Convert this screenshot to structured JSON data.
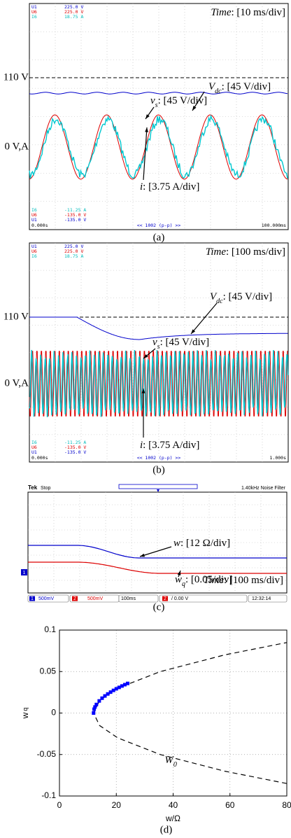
{
  "panels": [
    {
      "caption": "(a)",
      "top": [
        [
          "U1",
          "225.0 V"
        ],
        [
          "U6",
          "225.0 V"
        ],
        [
          "I6",
          "18.75 A"
        ]
      ],
      "bottom": [
        [
          "I6",
          "-11.25 A"
        ],
        [
          "U6",
          "-135.0 V"
        ],
        [
          "U1",
          "-135.0 V"
        ]
      ],
      "t_start": "0.000s",
      "t_center": "<< 1002 (p-p) >>",
      "t_end": "100.000ms",
      "time_sym": "Time",
      "time_value": ": [10 ms/div]",
      "vdc_sym": "V",
      "vdc_sub": "dc",
      "vdc_value": ": [45 V/div]",
      "vs_sym": "v",
      "vs_sub": "s",
      "vs_value": ": [45 V/div]",
      "i_sym": "i",
      "i_value": ": [3.75 A/div]",
      "level": "110 V",
      "zero": "0 V,A"
    },
    {
      "caption": "(b)",
      "top": [
        [
          "U1",
          "225.0 V"
        ],
        [
          "U6",
          "225.0 V"
        ],
        [
          "I6",
          "18.75 A"
        ]
      ],
      "bottom": [
        [
          "I6",
          "-11.25 A"
        ],
        [
          "U6",
          "-135.0 V"
        ],
        [
          "U1",
          "-135.0 V"
        ]
      ],
      "t_start": "0.000s",
      "t_center": "<< 1002 (p-p) >>",
      "t_end": "1.000s",
      "time_sym": "Time",
      "time_value": ": [100 ms/div]",
      "vdc_sym": "V",
      "vdc_sub": "dc",
      "vdc_value": ": [45 V/div]",
      "vs_sym": "v",
      "vs_sub": "s",
      "vs_value": ": [45 V/div]",
      "i_sym": "i",
      "i_value": ": [3.75 A/div]",
      "level": "110 V",
      "zero": "0 V,A"
    }
  ],
  "scope": {
    "caption": "(c)",
    "brand": "Tek",
    "state": "Stop",
    "filter": "1.40kHz  Noise Filter",
    "ch1": "1",
    "ch1_scale": "500mV",
    "ch2": "2",
    "ch2_scale": "500mV",
    "timebase": "100ms",
    "trig": "/ 0.00 V",
    "clock": "12:32:14",
    "marker": "1",
    "w_sym": "w",
    "w_value": ": [12 Ω/div]",
    "wq_sym": "w",
    "wq_sub": "q",
    "wq_value": ": [0.05/div]",
    "time_sym": "Time",
    "time_value": ": [100 ms/div]"
  },
  "chart_data": {
    "type": "line",
    "caption": "(d)",
    "xlabel": "w/Ω",
    "ylabel": "w",
    "ylabel_sub": "q",
    "xlim": [
      0,
      80
    ],
    "ylim": [
      -0.1,
      0.1
    ],
    "xticks": [
      0,
      20,
      40,
      60,
      80
    ],
    "yticks": [
      0.1,
      0.05,
      0,
      -0.05,
      -0.1
    ],
    "grid": true,
    "annotation": {
      "text": "W",
      "sub": "0"
    },
    "series": [
      {
        "color": "#000000",
        "dash": true,
        "x": [
          80,
          58.1,
          35.5,
          20.5,
          14.1,
          12,
          14.1,
          20.5,
          35.5,
          58.1,
          80
        ],
        "values": [
          -0.085,
          -0.07,
          -0.05,
          -0.03,
          -0.015,
          0,
          0.015,
          0.03,
          0.05,
          0.07,
          0.085
        ]
      },
      {
        "color": "#0000ff",
        "marker": true,
        "x": [
          12,
          12.2,
          12.5,
          13,
          14,
          15,
          16,
          17,
          18,
          19,
          20,
          21,
          22,
          23,
          24
        ],
        "values": [
          0,
          0.0046,
          0.0073,
          0.0103,
          0.0146,
          0.0179,
          0.0206,
          0.023,
          0.0252,
          0.0273,
          0.0292,
          0.0309,
          0.0326,
          0.0342,
          0.0357
        ]
      }
    ]
  }
}
